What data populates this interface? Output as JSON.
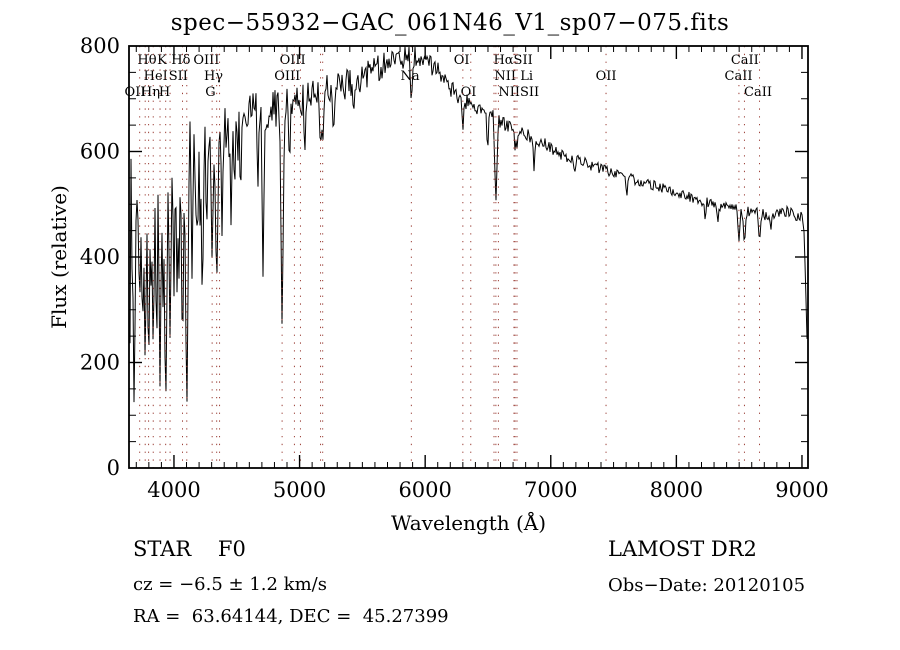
{
  "title": "spec−55932−GAC_061N46_V1_sp07−075.fits",
  "annotations": {
    "class_label": "STAR    F0",
    "survey": "LAMOST DR2",
    "cz": "cz = −6.5 ± 1.2 km/s",
    "obs_date": "Obs−Date: 20120105",
    "radec": "RA =  63.64144, DEC =  45.27399"
  },
  "chart_data": {
    "type": "line",
    "title": "spec−55932−GAC_061N46_V1_sp07−075.fits",
    "xlabel": "Wavelength (Å)",
    "ylabel": "Flux (relative)",
    "xlim": [
      3642,
      9048
    ],
    "ylim": [
      0,
      800
    ],
    "x_ticks": [
      4000,
      5000,
      6000,
      7000,
      8000,
      9000
    ],
    "y_ticks": [
      0,
      200,
      400,
      600,
      800
    ],
    "x_minor_step": 100,
    "y_minor_step": 50,
    "grid": false,
    "legend": "none",
    "trace_color": "#000000",
    "marker_color": "#9c4038",
    "seed": 12,
    "continuum": [
      [
        3642,
        480
      ],
      [
        3700,
        500
      ],
      [
        3800,
        520
      ],
      [
        3900,
        545
      ],
      [
        4000,
        565
      ],
      [
        4150,
        605
      ],
      [
        4300,
        630
      ],
      [
        4500,
        655
      ],
      [
        4700,
        675
      ],
      [
        4900,
        690
      ],
      [
        5100,
        705
      ],
      [
        5300,
        722
      ],
      [
        5500,
        742
      ],
      [
        5700,
        766
      ],
      [
        5820,
        780
      ],
      [
        5950,
        778
      ],
      [
        6050,
        762
      ],
      [
        6150,
        742
      ],
      [
        6250,
        702
      ],
      [
        6400,
        688
      ],
      [
        6550,
        662
      ],
      [
        6700,
        646
      ],
      [
        6900,
        622
      ],
      [
        7100,
        592
      ],
      [
        7300,
        576
      ],
      [
        7500,
        560
      ],
      [
        7700,
        544
      ],
      [
        7900,
        530
      ],
      [
        8100,
        514
      ],
      [
        8300,
        500
      ],
      [
        8500,
        488
      ],
      [
        8700,
        481
      ],
      [
        8900,
        484
      ],
      [
        9000,
        476
      ],
      [
        9015,
        462
      ],
      [
        9035,
        300
      ],
      [
        9048,
        130
      ]
    ],
    "noise_amplitude": [
      [
        3642,
        115
      ],
      [
        3850,
        100
      ],
      [
        4050,
        82
      ],
      [
        4250,
        62
      ],
      [
        4500,
        46
      ],
      [
        4800,
        38
      ],
      [
        5100,
        32
      ],
      [
        5500,
        28
      ],
      [
        5900,
        22
      ],
      [
        6300,
        16
      ],
      [
        6800,
        13
      ],
      [
        7400,
        10
      ],
      [
        8000,
        9
      ],
      [
        8600,
        11
      ],
      [
        9048,
        13
      ]
    ],
    "absorption_features": [
      [
        3683,
        95,
        2
      ],
      [
        3727,
        300,
        2
      ],
      [
        3750,
        210,
        1.5
      ],
      [
        3771,
        180,
        2
      ],
      [
        3798,
        160,
        2
      ],
      [
        3820,
        290,
        1.5
      ],
      [
        3835,
        205,
        2
      ],
      [
        3862,
        310,
        1.5
      ],
      [
        3889,
        150,
        2
      ],
      [
        3912,
        290,
        1.5
      ],
      [
        3934,
        85,
        2.5
      ],
      [
        3969,
        235,
        2
      ],
      [
        4000,
        320,
        1.5
      ],
      [
        4026,
        290,
        1.5
      ],
      [
        4068,
        180,
        2
      ],
      [
        4102,
        80,
        2.5
      ],
      [
        4144,
        350,
        1.5
      ],
      [
        4180,
        400,
        1.5
      ],
      [
        4226,
        290,
        2
      ],
      [
        4260,
        420,
        1.5
      ],
      [
        4304,
        380,
        2
      ],
      [
        4340,
        330,
        2.5
      ],
      [
        4383,
        430,
        1.5
      ],
      [
        4455,
        445,
        1.5
      ],
      [
        4530,
        495,
        1.5
      ],
      [
        4668,
        520,
        1.5
      ],
      [
        4709,
        360,
        2
      ],
      [
        4861,
        255,
        2.5
      ],
      [
        4920,
        555,
        1.5
      ],
      [
        5041,
        580,
        1.5
      ],
      [
        5167,
        595,
        2
      ],
      [
        5184,
        605,
        2
      ],
      [
        5270,
        615,
        1.5
      ],
      [
        5430,
        660,
        1.5
      ],
      [
        5890,
        685,
        2
      ],
      [
        6300,
        635,
        1.5
      ],
      [
        6497,
        590,
        1.5
      ],
      [
        6563,
        500,
        2.5
      ],
      [
        6717,
        595,
        1.5
      ],
      [
        6731,
        605,
        1.5
      ],
      [
        6867,
        560,
        1.5
      ],
      [
        7190,
        555,
        1.5
      ],
      [
        7605,
        510,
        1.5
      ],
      [
        8230,
        465,
        1.5
      ],
      [
        8330,
        462,
        1.5
      ],
      [
        8498,
        428,
        2
      ],
      [
        8542,
        418,
        2
      ],
      [
        8662,
        425,
        2
      ],
      [
        8752,
        448,
        1.5
      ]
    ],
    "spectral_line_markers": [
      3727,
      3771,
      3798,
      3835,
      3889,
      3934,
      3969,
      4068,
      4102,
      4304,
      4340,
      4363,
      4861,
      4959,
      5007,
      5167,
      5184,
      5890,
      6300,
      6363,
      6548,
      6563,
      6583,
      6707,
      6716,
      6731,
      7440,
      8498,
      8542,
      8662
    ],
    "line_labels": [
      {
        "text": "Hθ",
        "row": 1,
        "wavelength": 3785
      },
      {
        "text": "K",
        "row": 1,
        "wavelength": 3905
      },
      {
        "text": "Hδ",
        "row": 1,
        "wavelength": 4055
      },
      {
        "text": "OIII",
        "row": 1,
        "wavelength": 4258
      },
      {
        "text": "OIII",
        "row": 1,
        "wavelength": 4945
      },
      {
        "text": "OI",
        "row": 1,
        "wavelength": 6290
      },
      {
        "text": "HαSII",
        "row": 1,
        "wavelength": 6700
      },
      {
        "text": "CaII",
        "row": 1,
        "wavelength": 8545
      },
      {
        "text": "HeI",
        "row": 2,
        "wavelength": 3855
      },
      {
        "text": "SII",
        "row": 2,
        "wavelength": 4035
      },
      {
        "text": "Hγ",
        "row": 2,
        "wavelength": 4315
      },
      {
        "text": "OIII",
        "row": 2,
        "wavelength": 4902
      },
      {
        "text": "Na",
        "row": 2,
        "wavelength": 5880
      },
      {
        "text": "NII Li",
        "row": 2,
        "wavelength": 6705
      },
      {
        "text": "OII",
        "row": 2,
        "wavelength": 7440
      },
      {
        "text": "CaII",
        "row": 2,
        "wavelength": 8495
      },
      {
        "text": "OII",
        "row": 3,
        "wavelength": 3690
      },
      {
        "text": "Hη",
        "row": 3,
        "wavelength": 3813
      },
      {
        "text": "H",
        "row": 3,
        "wavelength": 3925
      },
      {
        "text": "G",
        "row": 3,
        "wavelength": 4290
      },
      {
        "text": "OI",
        "row": 3,
        "wavelength": 6345
      },
      {
        "text": "NIISII",
        "row": 3,
        "wavelength": 6745
      },
      {
        "text": "CaII",
        "row": 3,
        "wavelength": 8650
      }
    ]
  }
}
